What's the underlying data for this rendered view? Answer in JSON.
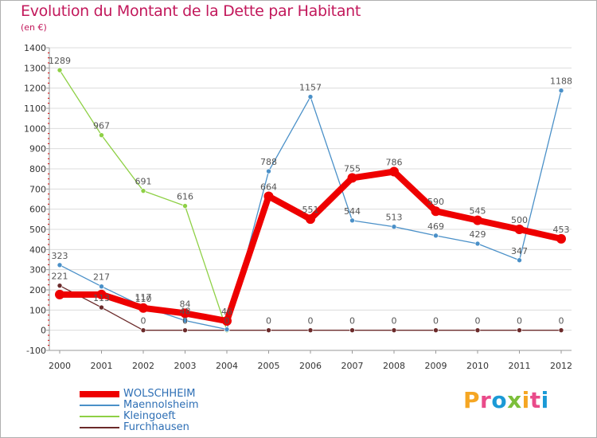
{
  "header": {
    "title": "Evolution du Montant de la Dette par Habitant",
    "unit": "(en €)"
  },
  "logo": {
    "text": "Proxiti",
    "colors": [
      "#f5a623",
      "#e94b8a",
      "#1b9ad6",
      "#7cbf3a",
      "#f5a623",
      "#e94b8a",
      "#1b9ad6"
    ]
  },
  "chart_data": {
    "type": "line",
    "title": "Evolution du Montant de la Dette par Habitant",
    "ylabel": "(en €)",
    "xlabel": "",
    "x": [
      "2000",
      "2001",
      "2002",
      "2003",
      "2004",
      "2005",
      "2006",
      "2007",
      "2008",
      "2009",
      "2010",
      "2011",
      "2012"
    ],
    "ylim": [
      -100,
      1400
    ],
    "yticks": [
      -100,
      0,
      100,
      200,
      300,
      400,
      500,
      600,
      700,
      800,
      900,
      1000,
      1100,
      1200,
      1300,
      1400
    ],
    "grid": "horizontal",
    "legend_position": "bottom-left",
    "series": [
      {
        "name": "WOLSCHHEIM",
        "color": "#ee0000",
        "values": [
          177,
          177,
          110,
          84,
          46,
          664,
          551,
          755,
          786,
          590,
          545,
          500,
          453
        ],
        "labels": [
          "",
          "",
          "110",
          "84",
          "46",
          "664",
          "551",
          "755",
          "786",
          "590",
          "545",
          "500",
          "453"
        ]
      },
      {
        "name": "Maennolsheim",
        "color": "#4a90c8",
        "values": [
          323,
          217,
          117,
          48,
          4,
          788,
          1157,
          544,
          513,
          469,
          429,
          347,
          1188
        ],
        "labels": [
          "323",
          "217",
          "117",
          "48",
          "",
          "788",
          "1157",
          "544",
          "513",
          "469",
          "429",
          "347",
          "1188"
        ]
      },
      {
        "name": "Kleingoeft",
        "color": "#8ed045",
        "values": [
          1289,
          967,
          691,
          616,
          0,
          null,
          null,
          null,
          null,
          null,
          null,
          null,
          null
        ],
        "labels": [
          "1289",
          "967",
          "691",
          "616",
          "",
          "",
          "",
          "",
          "",
          "",
          "",
          "",
          ""
        ]
      },
      {
        "name": "Furchhausen",
        "color": "#6b2a2a",
        "values": [
          221,
          113,
          0,
          0,
          0,
          0,
          0,
          0,
          0,
          0,
          0,
          0,
          0
        ],
        "labels": [
          "221",
          "113",
          "0",
          "0",
          "0",
          "0",
          "0",
          "0",
          "0",
          "0",
          "0",
          "0",
          "0"
        ]
      }
    ]
  }
}
